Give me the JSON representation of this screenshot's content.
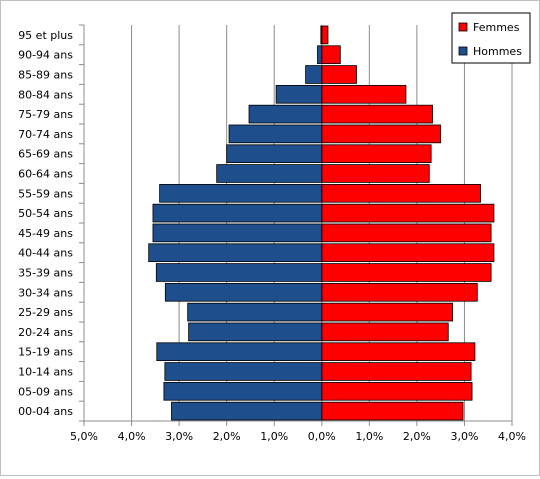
{
  "chart_data": {
    "type": "bar",
    "orientation": "horizontal",
    "layout": "population-pyramid",
    "categories": [
      "00-04 ans",
      "05-09 ans",
      "10-14 ans",
      "15-19 ans",
      "20-24 ans",
      "25-29 ans",
      "30-34 ans",
      "35-39 ans",
      "40-44 ans",
      "45-49 ans",
      "50-54 ans",
      "55-59 ans",
      "60-64 ans",
      "65-69 ans",
      "70-74 ans",
      "75-79 ans",
      "80-84 ans",
      "85-89 ans",
      "90-94 ans",
      "95 et plus"
    ],
    "series": [
      {
        "name": "Femmes",
        "color": "#ff0000",
        "side": "right",
        "values": [
          2.97,
          3.16,
          3.14,
          3.22,
          2.66,
          2.75,
          3.27,
          3.56,
          3.62,
          3.56,
          3.62,
          3.34,
          2.26,
          2.3,
          2.5,
          2.33,
          1.77,
          0.73,
          0.39,
          0.13
        ]
      },
      {
        "name": "Hommes",
        "color": "#1f4e8c",
        "side": "left",
        "values": [
          3.16,
          3.32,
          3.3,
          3.47,
          2.8,
          2.82,
          3.29,
          3.48,
          3.64,
          3.55,
          3.55,
          3.41,
          2.21,
          2.0,
          1.95,
          1.53,
          0.96,
          0.34,
          0.09,
          0.02
        ]
      }
    ],
    "x_ticks": [
      "5,0%",
      "4,0%",
      "3,0%",
      "2,0%",
      "1,0%",
      "0,0%",
      "1,0%",
      "2,0%",
      "3,0%",
      "4,0%"
    ],
    "xlim": [
      -5,
      4
    ],
    "title": "",
    "xlabel": "",
    "ylabel": "",
    "grid": "vertical",
    "legend": "top-right"
  }
}
